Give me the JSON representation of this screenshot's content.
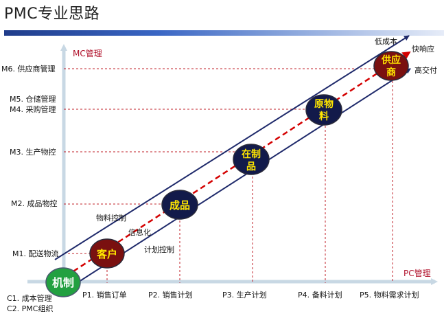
{
  "title": "PMC专业思路",
  "axes": {
    "y_title": "MC管理",
    "x_title": "PC管理"
  },
  "y_levels": [
    {
      "label": "M6. 供应商管理"
    },
    {
      "label": "M5. 仓储管理"
    },
    {
      "label": "M4. 采购管理"
    },
    {
      "label": "M3. 生产物控"
    },
    {
      "label": "M2. 成品物控"
    },
    {
      "label": "M1. 配送物流"
    }
  ],
  "x_levels": [
    {
      "label": "P1. 销售订单"
    },
    {
      "label": "P2. 销售计划"
    },
    {
      "label": "P3. 生产计划"
    },
    {
      "label": "P4. 备料计划"
    },
    {
      "label": "P5. 物料需求计划"
    }
  ],
  "base_labels": [
    "C1. 成本管理",
    "C2. PMC组织"
  ],
  "nodes": {
    "origin": {
      "text": "机制"
    },
    "customer": {
      "text": "客户"
    },
    "product": {
      "text": "成品"
    },
    "wip": {
      "line1": "在制",
      "line2": "品"
    },
    "material": {
      "line1": "原物",
      "line2": "料"
    },
    "supplier": {
      "line1": "供应",
      "line2": "商"
    }
  },
  "annotations": {
    "material_control": "物料控制",
    "informatization": "信息化",
    "plan_control": "计划控制",
    "low_cost": "低成本",
    "fast_response": "快响应",
    "high_delivery": "高交付"
  },
  "colors": {
    "axis": "#c8d8e4",
    "accent_red": "#d40000",
    "band": "#1f2a6b",
    "origin": "#22a040",
    "dark_red": "#7a1010",
    "navy": "#121a4a",
    "yellow_text": "#ffe600"
  }
}
